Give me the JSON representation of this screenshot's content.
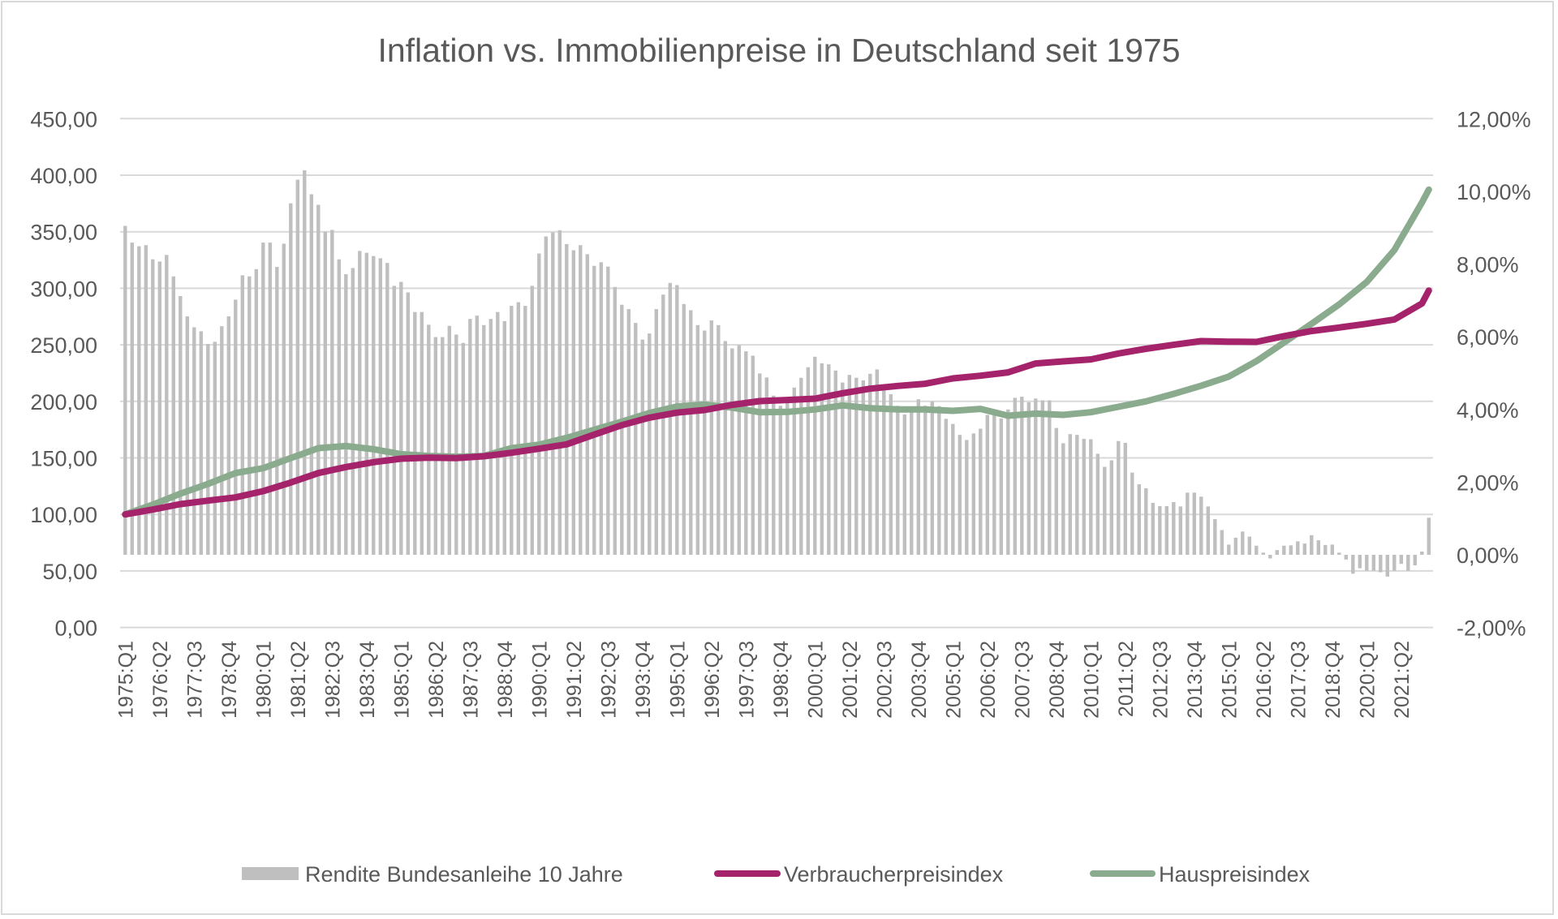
{
  "chart_data": {
    "type": "bar+line",
    "title": "Inflation vs. Immobilienpreise in Deutschland seit 1975",
    "x_range": [
      "1975:Q1",
      "2022:Q2"
    ],
    "x_frequency": "quarterly",
    "x_tick_labels": [
      "1975:Q1",
      "1976:Q2",
      "1977:Q3",
      "1978:Q4",
      "1980:Q1",
      "1981:Q2",
      "1982:Q3",
      "1983:Q4",
      "1985:Q1",
      "1986:Q2",
      "1987:Q3",
      "1988:Q4",
      "1990:Q1",
      "1991:Q2",
      "1992:Q3",
      "1993:Q4",
      "1995:Q1",
      "1996:Q2",
      "1997:Q3",
      "1998:Q4",
      "2000:Q1",
      "2001:Q2",
      "2002:Q3",
      "2003:Q4",
      "2005:Q1",
      "2006:Q2",
      "2007:Q3",
      "2008:Q4",
      "2010:Q1",
      "2011:Q2",
      "2012:Q3",
      "2013:Q4",
      "2015:Q1",
      "2016:Q2",
      "2017:Q3",
      "2018:Q4",
      "2020:Q1",
      "2021:Q2"
    ],
    "y_left": {
      "range": [
        0,
        450
      ],
      "tick_labels": [
        "0,00",
        "50,00",
        "100,00",
        "150,00",
        "200,00",
        "250,00",
        "300,00",
        "350,00",
        "400,00",
        "450,00"
      ]
    },
    "y_right": {
      "range": [
        -2,
        12
      ],
      "unit": "%",
      "tick_labels": [
        "-2,00%",
        "0,00%",
        "2,00%",
        "4,00%",
        "6,00%",
        "8,00%",
        "10,00%",
        "12,00%"
      ]
    },
    "grid": true,
    "legend_position": "bottom",
    "series": [
      {
        "name": "Rendite Bundesanleihe 10 Jahre",
        "type": "bar",
        "axis": "right",
        "color": "#bfbfbf",
        "values": [
          9.05,
          8.59,
          8.49,
          8.52,
          8.13,
          8.07,
          8.25,
          7.66,
          7.12,
          6.56,
          6.26,
          6.15,
          5.8,
          5.86,
          6.29,
          6.56,
          7.02,
          7.69,
          7.66,
          7.86,
          8.59,
          8.59,
          7.92,
          8.56,
          9.67,
          10.32,
          10.58,
          9.92,
          9.63,
          8.89,
          8.94,
          8.13,
          7.72,
          7.89,
          8.36,
          8.31,
          8.22,
          8.16,
          8.03,
          7.4,
          7.51,
          7.22,
          6.68,
          6.68,
          6.33,
          5.99,
          5.99,
          6.3,
          6.06,
          5.83,
          6.49,
          6.58,
          6.32,
          6.49,
          6.68,
          6.43,
          6.85,
          6.95,
          6.85,
          7.4,
          8.29,
          8.76,
          8.87,
          8.93,
          8.55,
          8.38,
          8.52,
          8.27,
          7.95,
          8.05,
          7.93,
          7.37,
          6.88,
          6.76,
          6.38,
          5.92,
          6.09,
          6.76,
          7.16,
          7.48,
          7.42,
          6.9,
          6.73,
          6.32,
          6.17,
          6.45,
          6.32,
          5.88,
          5.68,
          5.77,
          5.6,
          5.48,
          4.99,
          4.88,
          4.38,
          4.1,
          4.2,
          4.6,
          4.87,
          5.16,
          5.45,
          5.27,
          5.24,
          5.07,
          4.74,
          4.95,
          4.87,
          4.8,
          4.98,
          5.1,
          4.6,
          4.42,
          4.1,
          3.86,
          4.0,
          4.28,
          4.1,
          4.22,
          4.09,
          3.74,
          3.6,
          3.3,
          3.16,
          3.34,
          3.47,
          3.85,
          3.9,
          3.75,
          4.0,
          4.32,
          4.35,
          4.2,
          4.3,
          4.25,
          4.25,
          3.49,
          3.07,
          3.32,
          3.3,
          3.19,
          3.18,
          2.78,
          2.42,
          2.6,
          3.13,
          3.08,
          2.26,
          1.94,
          1.83,
          1.43,
          1.34,
          1.34,
          1.45,
          1.33,
          1.71,
          1.71,
          1.6,
          1.33,
          0.98,
          0.68,
          0.28,
          0.47,
          0.64,
          0.5,
          0.25,
          0.06,
          -0.1,
          0.13,
          0.25,
          0.26,
          0.37,
          0.31,
          0.54,
          0.4,
          0.27,
          0.28,
          0.06,
          -0.13,
          -0.52,
          -0.37,
          -0.44,
          -0.44,
          -0.48,
          -0.6,
          -0.44,
          -0.25,
          -0.44,
          -0.29,
          0.09,
          1.02
        ]
      },
      {
        "name": "Verbraucherpreisindex",
        "type": "line",
        "axis": "left",
        "color": "#a5236b",
        "x": [
          "1975:Q1",
          "1976:Q1",
          "1977:Q1",
          "1978:Q1",
          "1979:Q1",
          "1980:Q1",
          "1981:Q1",
          "1982:Q1",
          "1983:Q1",
          "1984:Q1",
          "1985:Q1",
          "1986:Q1",
          "1987:Q1",
          "1988:Q1",
          "1989:Q1",
          "1990:Q1",
          "1991:Q1",
          "1992:Q1",
          "1993:Q1",
          "1994:Q1",
          "1995:Q1",
          "1996:Q1",
          "1997:Q1",
          "1998:Q1",
          "1999:Q1",
          "2000:Q1",
          "2001:Q1",
          "2002:Q1",
          "2003:Q1",
          "2004:Q1",
          "2005:Q1",
          "2006:Q1",
          "2007:Q1",
          "2008:Q1",
          "2009:Q1",
          "2010:Q1",
          "2011:Q1",
          "2012:Q1",
          "2013:Q1",
          "2014:Q1",
          "2015:Q1",
          "2016:Q1",
          "2017:Q1",
          "2018:Q1",
          "2019:Q1",
          "2020:Q1",
          "2021:Q1",
          "2022:Q1",
          "2022:Q2"
        ],
        "values": [
          100,
          104.3,
          109.1,
          112.2,
          115.1,
          120.6,
          128.2,
          136.6,
          141.9,
          146.2,
          149.3,
          150.2,
          149.8,
          151.4,
          154.5,
          158.1,
          162.0,
          170.6,
          178.9,
          185.6,
          190.0,
          192.3,
          196.9,
          200.2,
          201.2,
          202.4,
          207.2,
          211.2,
          213.6,
          215.6,
          220.3,
          222.7,
          225.6,
          233.5,
          235.4,
          237.1,
          242.3,
          246.5,
          250.0,
          253.3,
          252.8,
          252.6,
          257.7,
          262.2,
          265.3,
          268.6,
          272.4,
          286.5,
          298.0
        ]
      },
      {
        "name": "Hauspreisindex",
        "type": "line",
        "axis": "left",
        "color": "#8aab8e",
        "x": [
          "1975:Q1",
          "1976:Q1",
          "1977:Q1",
          "1978:Q1",
          "1979:Q1",
          "1980:Q1",
          "1981:Q1",
          "1982:Q1",
          "1983:Q1",
          "1984:Q1",
          "1985:Q1",
          "1986:Q1",
          "1987:Q1",
          "1988:Q1",
          "1989:Q1",
          "1990:Q1",
          "1991:Q1",
          "1992:Q1",
          "1993:Q1",
          "1994:Q1",
          "1995:Q1",
          "1996:Q1",
          "1997:Q1",
          "1998:Q1",
          "1999:Q1",
          "2000:Q1",
          "2001:Q1",
          "2002:Q1",
          "2003:Q1",
          "2004:Q1",
          "2005:Q1",
          "2006:Q1",
          "2007:Q1",
          "2008:Q1",
          "2009:Q1",
          "2010:Q1",
          "2011:Q1",
          "2012:Q1",
          "2013:Q1",
          "2014:Q1",
          "2015:Q1",
          "2016:Q1",
          "2017:Q1",
          "2018:Q1",
          "2019:Q1",
          "2020:Q1",
          "2021:Q1",
          "2022:Q1",
          "2022:Q2"
        ],
        "values": [
          100,
          108.6,
          118.4,
          127.0,
          136.6,
          140.9,
          149.8,
          158.6,
          160.5,
          157.7,
          153.3,
          151.7,
          151.0,
          151.7,
          158.6,
          161.7,
          167.7,
          174.9,
          182.1,
          189.7,
          195.5,
          197.1,
          194.5,
          190.4,
          190.7,
          192.8,
          196.4,
          194.0,
          192.8,
          192.8,
          191.6,
          193.3,
          187.3,
          189.2,
          188.0,
          190.4,
          195.2,
          200.0,
          206.6,
          213.8,
          221.9,
          235.5,
          252.0,
          268.6,
          285.7,
          305.6,
          333.7,
          375.8,
          387.2
        ]
      }
    ]
  }
}
